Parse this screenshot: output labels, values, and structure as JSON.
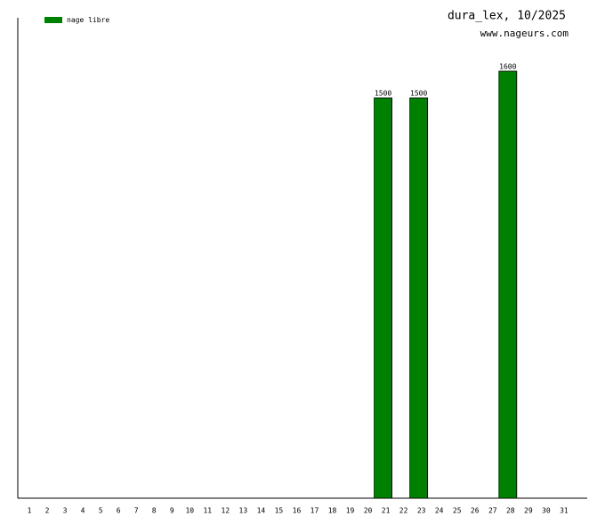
{
  "chart_data": {
    "type": "bar",
    "title": "dura_lex, 10/2025",
    "subtitle": "www.nageurs.com",
    "categories": [
      "1",
      "2",
      "3",
      "4",
      "5",
      "6",
      "7",
      "8",
      "9",
      "10",
      "11",
      "12",
      "13",
      "14",
      "15",
      "16",
      "17",
      "18",
      "19",
      "20",
      "21",
      "22",
      "23",
      "24",
      "25",
      "26",
      "27",
      "28",
      "29",
      "30",
      "31"
    ],
    "series": [
      {
        "name": "nage libre",
        "color": "#008000",
        "values": [
          null,
          null,
          null,
          null,
          null,
          null,
          null,
          null,
          null,
          null,
          null,
          null,
          null,
          null,
          null,
          null,
          null,
          null,
          null,
          null,
          1500,
          null,
          1500,
          null,
          null,
          null,
          null,
          1600,
          null,
          null,
          null
        ]
      }
    ],
    "ylim": [
      0,
      1800
    ]
  }
}
